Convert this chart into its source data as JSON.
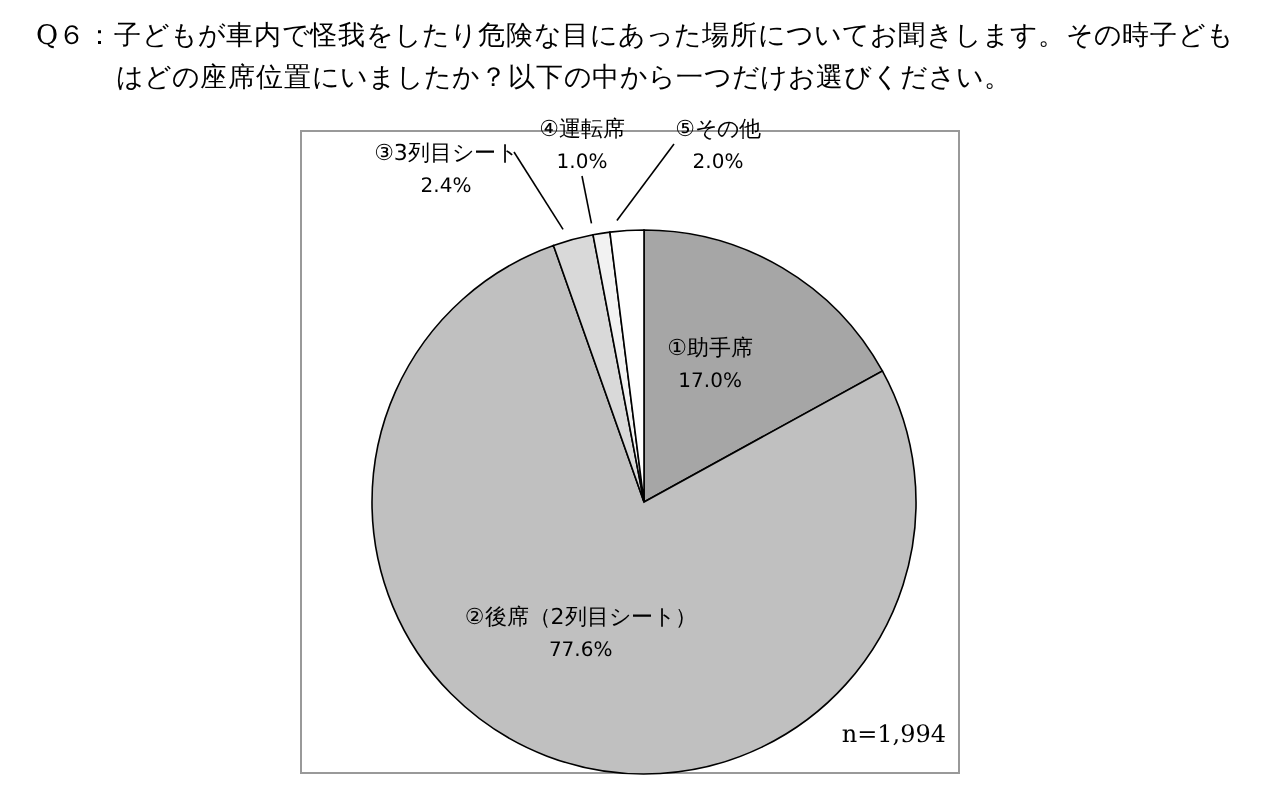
{
  "chart_data": {
    "type": "pie",
    "title": "Q６：子どもが車内で怪我をしたり危険な目にあった場所についてお聞きします。その時子どもはどの座席位置にいましたか？以下の中から一つだけお選びください。",
    "categories": [
      "①助手席",
      "②後席（2列目シート）",
      "③3列目シート",
      "④運転席",
      "⑤その他"
    ],
    "values": [
      17.0,
      77.6,
      2.4,
      1.0,
      2.0
    ],
    "value_labels": [
      "17.0%",
      "77.6%",
      "2.4%",
      "1.0%",
      "2.0%"
    ],
    "colors": [
      "#a6a6a6",
      "#c0c0c0",
      "#d9d9d9",
      "#f2f2f2",
      "#ffffff"
    ],
    "annotations": [
      "n=1,994"
    ],
    "legend": false
  }
}
